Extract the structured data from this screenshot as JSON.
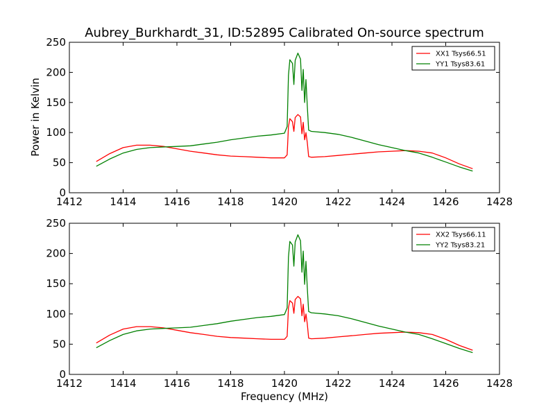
{
  "figure": {
    "title": "Aubrey_Burkhardt_31, ID:52895 Calibrated On-source spectrum",
    "xlabel": "Frequency (MHz)",
    "ylabel": "Power in Kelvin"
  },
  "chart_data": [
    {
      "type": "line",
      "title": "Aubrey_Burkhardt_31, ID:52895 Calibrated On-source spectrum",
      "xlabel": "",
      "ylabel": "Power in Kelvin",
      "xlim": [
        1412,
        1428
      ],
      "ylim": [
        0,
        250
      ],
      "xticks": [
        1412,
        1414,
        1416,
        1418,
        1420,
        1422,
        1424,
        1426,
        1428
      ],
      "yticks": [
        0,
        50,
        100,
        150,
        200,
        250
      ],
      "grid": false,
      "legend": "top-right",
      "series": [
        {
          "name": "XX1 Tsys66.51",
          "color": "#ff0000",
          "x": [
            1413.0,
            1413.5,
            1414.0,
            1414.5,
            1415.0,
            1415.5,
            1416.0,
            1416.5,
            1417.0,
            1417.5,
            1418.0,
            1418.5,
            1419.0,
            1419.5,
            1420.0,
            1420.1,
            1420.15,
            1420.2,
            1420.3,
            1420.35,
            1420.4,
            1420.5,
            1420.6,
            1420.65,
            1420.7,
            1420.75,
            1420.8,
            1420.85,
            1420.9,
            1421.0,
            1421.5,
            1422.0,
            1422.5,
            1423.0,
            1423.5,
            1424.0,
            1424.5,
            1425.0,
            1425.5,
            1426.0,
            1426.5,
            1427.0
          ],
          "y": [
            52,
            65,
            75,
            79,
            79,
            77,
            73,
            69,
            66,
            63,
            61,
            60,
            59,
            58,
            58,
            63,
            110,
            123,
            118,
            102,
            125,
            130,
            126,
            98,
            117,
            88,
            100,
            84,
            60,
            59,
            60,
            62,
            64,
            66,
            68,
            69,
            70,
            69,
            66,
            58,
            48,
            40
          ]
        },
        {
          "name": "YY1 Tsys83.61",
          "color": "#008000",
          "x": [
            1413.0,
            1413.5,
            1414.0,
            1414.5,
            1415.0,
            1415.5,
            1416.0,
            1416.5,
            1417.0,
            1417.5,
            1418.0,
            1418.5,
            1419.0,
            1419.5,
            1420.0,
            1420.1,
            1420.15,
            1420.2,
            1420.3,
            1420.35,
            1420.4,
            1420.5,
            1420.6,
            1420.65,
            1420.7,
            1420.75,
            1420.8,
            1420.85,
            1420.9,
            1421.0,
            1421.5,
            1422.0,
            1422.5,
            1423.0,
            1423.5,
            1424.0,
            1424.5,
            1425.0,
            1425.5,
            1426.0,
            1426.5,
            1427.0
          ],
          "y": [
            44,
            56,
            66,
            72,
            75,
            76,
            77,
            78,
            81,
            84,
            88,
            91,
            94,
            96,
            99,
            110,
            195,
            221,
            215,
            180,
            220,
            232,
            222,
            170,
            205,
            150,
            188,
            145,
            104,
            102,
            100,
            97,
            92,
            86,
            80,
            75,
            70,
            66,
            59,
            51,
            43,
            36
          ]
        }
      ]
    },
    {
      "type": "line",
      "title": "",
      "xlabel": "Frequency (MHz)",
      "ylabel": "",
      "xlim": [
        1412,
        1428
      ],
      "ylim": [
        0,
        250
      ],
      "xticks": [
        1412,
        1414,
        1416,
        1418,
        1420,
        1422,
        1424,
        1426,
        1428
      ],
      "yticks": [
        0,
        50,
        100,
        150,
        200,
        250
      ],
      "grid": false,
      "legend": "top-right",
      "series": [
        {
          "name": "XX2 Tsys66.11",
          "color": "#ff0000",
          "x": [
            1413.0,
            1413.5,
            1414.0,
            1414.5,
            1415.0,
            1415.5,
            1416.0,
            1416.5,
            1417.0,
            1417.5,
            1418.0,
            1418.5,
            1419.0,
            1419.5,
            1420.0,
            1420.1,
            1420.15,
            1420.2,
            1420.3,
            1420.35,
            1420.4,
            1420.5,
            1420.6,
            1420.65,
            1420.7,
            1420.75,
            1420.8,
            1420.85,
            1420.9,
            1421.0,
            1421.5,
            1422.0,
            1422.5,
            1423.0,
            1423.5,
            1424.0,
            1424.5,
            1425.0,
            1425.5,
            1426.0,
            1426.5,
            1427.0
          ],
          "y": [
            52,
            65,
            75,
            79,
            79,
            77,
            73,
            69,
            66,
            63,
            61,
            60,
            59,
            58,
            58,
            63,
            110,
            122,
            118,
            101,
            124,
            129,
            125,
            97,
            116,
            87,
            100,
            84,
            60,
            59,
            60,
            62,
            64,
            66,
            68,
            69,
            70,
            69,
            66,
            58,
            48,
            40
          ]
        },
        {
          "name": "YY2 Tsys83.21",
          "color": "#008000",
          "x": [
            1413.0,
            1413.5,
            1414.0,
            1414.5,
            1415.0,
            1415.5,
            1416.0,
            1416.5,
            1417.0,
            1417.5,
            1418.0,
            1418.5,
            1419.0,
            1419.5,
            1420.0,
            1420.1,
            1420.15,
            1420.2,
            1420.3,
            1420.35,
            1420.4,
            1420.5,
            1420.6,
            1420.65,
            1420.7,
            1420.75,
            1420.8,
            1420.85,
            1420.9,
            1421.0,
            1421.5,
            1422.0,
            1422.5,
            1423.0,
            1423.5,
            1424.0,
            1424.5,
            1425.0,
            1425.5,
            1426.0,
            1426.5,
            1427.0
          ],
          "y": [
            44,
            56,
            66,
            72,
            75,
            76,
            77,
            78,
            81,
            84,
            88,
            91,
            94,
            96,
            99,
            110,
            194,
            220,
            214,
            179,
            219,
            231,
            221,
            169,
            204,
            149,
            187,
            144,
            104,
            102,
            100,
            97,
            92,
            86,
            80,
            75,
            70,
            66,
            59,
            51,
            43,
            36
          ]
        }
      ]
    }
  ]
}
